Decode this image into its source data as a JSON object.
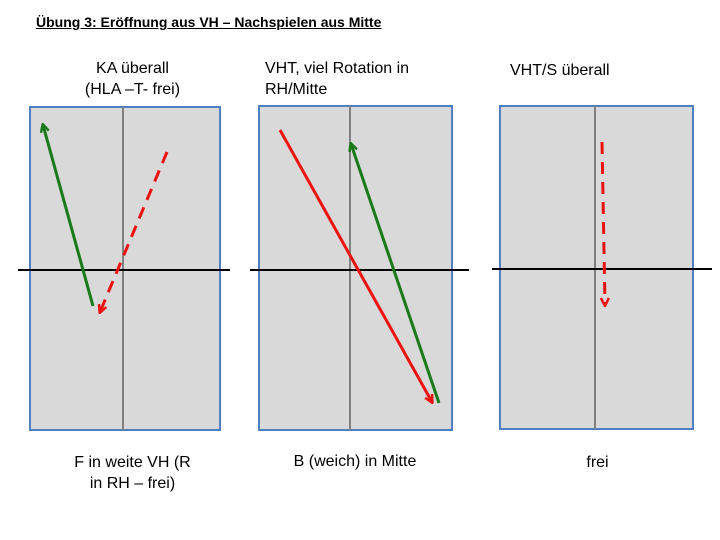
{
  "title": "Übung 3: Eröffnung aus VH – Nachspielen aus Mitte",
  "panels": [
    {
      "top_caption": "KA überall\n(HLA –T- frei)",
      "bottom_caption": "F in weite VH (R\nin RH – frei)"
    },
    {
      "top_caption": "VHT, viel Rotation in\nRH/Mitte",
      "bottom_caption": "B (weich) in Mitte"
    },
    {
      "top_caption": "VHT/S überall",
      "bottom_caption": "frei"
    }
  ],
  "colors": {
    "court_fill": "#d9d9d9",
    "court_border": "#4f7fbf",
    "center_line": "#808080",
    "net_line": "#000000",
    "green_arrow": "#1a7a1a",
    "red_arrow": "#ee1111"
  }
}
